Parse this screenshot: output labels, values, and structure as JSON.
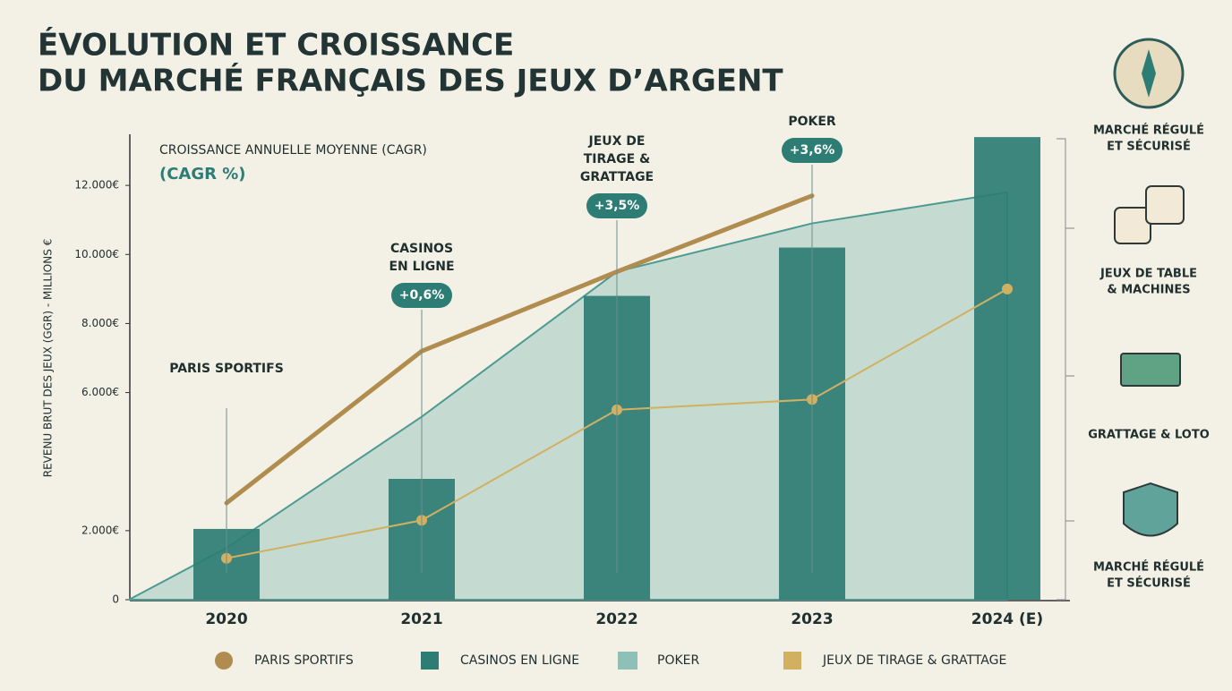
{
  "chart_data": {
    "type": "bar",
    "title": [
      "ÉVOLUTION ET CROISSANCE",
      "DU MARCHÉ FRANÇAIS DES JEUX D’ARGENT"
    ],
    "subtitle": "CROISSANCE ANNUELLE MOYENNE (CAGR)",
    "subtitle2": "(CAGR %)",
    "y_label": "REVENU BRUT DES JEUX (GGR) - MILLIONS €",
    "categories": [
      "2020",
      "2021",
      "2022",
      "2023",
      "2024 (E)"
    ],
    "ylim": [
      0,
      14000
    ],
    "yticks": [
      {
        "value": 0,
        "label": "0"
      },
      {
        "value": 2000,
        "label": "2.000€"
      },
      {
        "value": 6000,
        "label": "6.000€"
      },
      {
        "value": 8000,
        "label": "8.000€"
      },
      {
        "value": 10000,
        "label": "10.000€"
      },
      {
        "value": 12000,
        "label": "12.000€"
      }
    ],
    "series": [
      {
        "name": "PARIS SPORTIFS",
        "kind": "line",
        "color": "#b08d4f",
        "values": [
          2800,
          7200,
          9500,
          11700,
          null
        ]
      },
      {
        "name": "CASINOS EN LIGNE",
        "kind": "bar",
        "color": "#2e7d74",
        "values": [
          2050,
          3500,
          8800,
          10200,
          13400
        ]
      },
      {
        "name": "POKER",
        "kind": "area",
        "color": "#8fc0b8",
        "values": [
          1500,
          5300,
          9500,
          10900,
          11800
        ]
      },
      {
        "name": "JEUX DE TIRAGE & GRATTAGE",
        "kind": "dotline",
        "color": "#d2b062",
        "values": [
          1200,
          2300,
          5500,
          5800,
          9000
        ]
      }
    ],
    "annotations": [
      {
        "category": 0,
        "lines": [
          "PARIS SPORTIFS"
        ]
      },
      {
        "category": 1,
        "lines": [
          "CASINOS",
          "EN LIGNE"
        ],
        "badge": "+0,6%"
      },
      {
        "category": 2,
        "lines": [
          "JEUX DE",
          "TIRAGE &",
          "GRATTAGE"
        ],
        "badge": "+3,5%"
      },
      {
        "category": 3,
        "lines": [
          "POKER"
        ],
        "badge": "+3,6%"
      }
    ],
    "side_labels": [
      [
        "MARCHÉ RÉGULÉ",
        "ET SÉCURISÉ"
      ],
      [
        "JEUX DE TABLE",
        "& MACHINES"
      ],
      [
        "GRATTAGE & LOTO"
      ],
      [
        "MARCHÉ RÉGULÉ",
        "ET SÉCURISÉ"
      ]
    ]
  }
}
